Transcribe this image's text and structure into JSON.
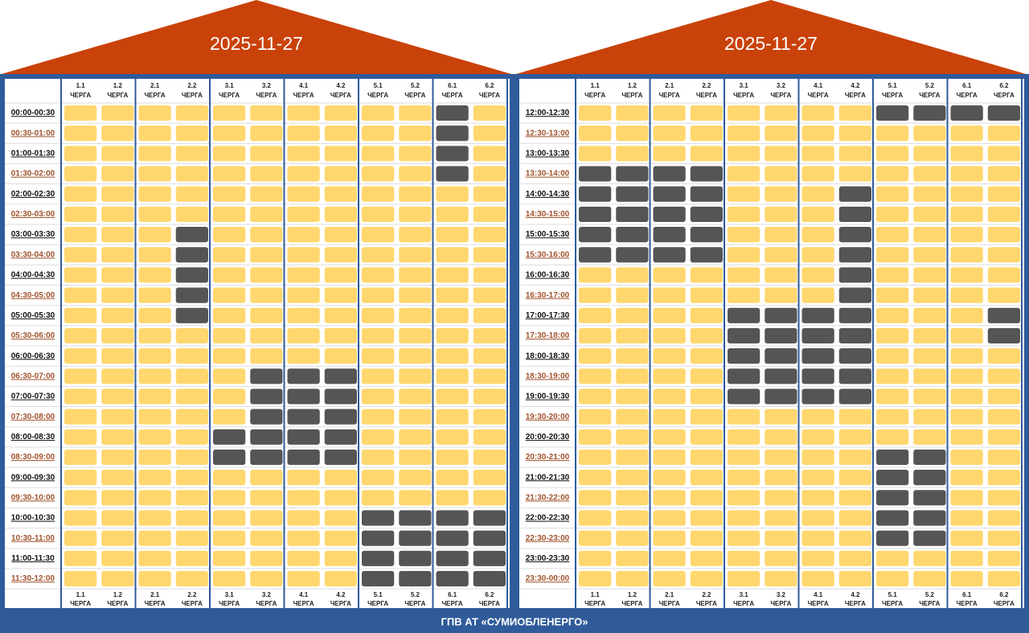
{
  "footer": "ГПВ АТ «СУМИОБЛЕНЕРГО»",
  "groups": [
    {
      "id": "1.1",
      "label": "ЧЕРГА"
    },
    {
      "id": "1.2",
      "label": "ЧЕРГА"
    },
    {
      "id": "2.1",
      "label": "ЧЕРГА"
    },
    {
      "id": "2.2",
      "label": "ЧЕРГА"
    },
    {
      "id": "3.1",
      "label": "ЧЕРГА"
    },
    {
      "id": "3.2",
      "label": "ЧЕРГА"
    },
    {
      "id": "4.1",
      "label": "ЧЕРГА"
    },
    {
      "id": "4.2",
      "label": "ЧЕРГА"
    },
    {
      "id": "5.1",
      "label": "ЧЕРГА"
    },
    {
      "id": "5.2",
      "label": "ЧЕРГА"
    },
    {
      "id": "6.1",
      "label": "ЧЕРГА"
    },
    {
      "id": "6.2",
      "label": "ЧЕРГА"
    }
  ],
  "panels": [
    {
      "date": "2025-11-27",
      "slots": [
        {
          "time": "00:00-00:30",
          "off": [
            0,
            0,
            0,
            0,
            0,
            0,
            0,
            0,
            0,
            0,
            1,
            0
          ]
        },
        {
          "time": "00:30-01:00",
          "off": [
            0,
            0,
            0,
            0,
            0,
            0,
            0,
            0,
            0,
            0,
            1,
            0
          ]
        },
        {
          "time": "01:00-01:30",
          "off": [
            0,
            0,
            0,
            0,
            0,
            0,
            0,
            0,
            0,
            0,
            1,
            0
          ]
        },
        {
          "time": "01:30-02:00",
          "off": [
            0,
            0,
            0,
            0,
            0,
            0,
            0,
            0,
            0,
            0,
            1,
            0
          ]
        },
        {
          "time": "02:00-02:30",
          "off": [
            0,
            0,
            0,
            0,
            0,
            0,
            0,
            0,
            0,
            0,
            0,
            0
          ]
        },
        {
          "time": "02:30-03:00",
          "off": [
            0,
            0,
            0,
            0,
            0,
            0,
            0,
            0,
            0,
            0,
            0,
            0
          ]
        },
        {
          "time": "03:00-03:30",
          "off": [
            0,
            0,
            0,
            1,
            0,
            0,
            0,
            0,
            0,
            0,
            0,
            0
          ]
        },
        {
          "time": "03:30-04:00",
          "off": [
            0,
            0,
            0,
            1,
            0,
            0,
            0,
            0,
            0,
            0,
            0,
            0
          ]
        },
        {
          "time": "04:00-04:30",
          "off": [
            0,
            0,
            0,
            1,
            0,
            0,
            0,
            0,
            0,
            0,
            0,
            0
          ]
        },
        {
          "time": "04:30-05:00",
          "off": [
            0,
            0,
            0,
            1,
            0,
            0,
            0,
            0,
            0,
            0,
            0,
            0
          ]
        },
        {
          "time": "05:00-05:30",
          "off": [
            0,
            0,
            0,
            1,
            0,
            0,
            0,
            0,
            0,
            0,
            0,
            0
          ]
        },
        {
          "time": "05:30-06:00",
          "off": [
            0,
            0,
            0,
            0,
            0,
            0,
            0,
            0,
            0,
            0,
            0,
            0
          ]
        },
        {
          "time": "06:00-06:30",
          "off": [
            0,
            0,
            0,
            0,
            0,
            0,
            0,
            0,
            0,
            0,
            0,
            0
          ]
        },
        {
          "time": "06:30-07:00",
          "off": [
            0,
            0,
            0,
            0,
            0,
            1,
            1,
            1,
            0,
            0,
            0,
            0
          ]
        },
        {
          "time": "07:00-07:30",
          "off": [
            0,
            0,
            0,
            0,
            0,
            1,
            1,
            1,
            0,
            0,
            0,
            0
          ]
        },
        {
          "time": "07:30-08:00",
          "off": [
            0,
            0,
            0,
            0,
            0,
            1,
            1,
            1,
            0,
            0,
            0,
            0
          ]
        },
        {
          "time": "08:00-08:30",
          "off": [
            0,
            0,
            0,
            0,
            1,
            1,
            1,
            1,
            0,
            0,
            0,
            0
          ]
        },
        {
          "time": "08:30-09:00",
          "off": [
            0,
            0,
            0,
            0,
            1,
            1,
            1,
            1,
            0,
            0,
            0,
            0
          ]
        },
        {
          "time": "09:00-09:30",
          "off": [
            0,
            0,
            0,
            0,
            0,
            0,
            0,
            0,
            0,
            0,
            0,
            0
          ]
        },
        {
          "time": "09:30-10:00",
          "off": [
            0,
            0,
            0,
            0,
            0,
            0,
            0,
            0,
            0,
            0,
            0,
            0
          ]
        },
        {
          "time": "10:00-10:30",
          "off": [
            0,
            0,
            0,
            0,
            0,
            0,
            0,
            0,
            1,
            1,
            1,
            1
          ]
        },
        {
          "time": "10:30-11:00",
          "off": [
            0,
            0,
            0,
            0,
            0,
            0,
            0,
            0,
            1,
            1,
            1,
            1
          ]
        },
        {
          "time": "11:00-11:30",
          "off": [
            0,
            0,
            0,
            0,
            0,
            0,
            0,
            0,
            1,
            1,
            1,
            1
          ]
        },
        {
          "time": "11:30-12:00",
          "off": [
            0,
            0,
            0,
            0,
            0,
            0,
            0,
            0,
            1,
            1,
            1,
            1
          ]
        }
      ]
    },
    {
      "date": "2025-11-27",
      "slots": [
        {
          "time": "12:00-12:30",
          "off": [
            0,
            0,
            0,
            0,
            0,
            0,
            0,
            0,
            1,
            1,
            1,
            1
          ]
        },
        {
          "time": "12:30-13:00",
          "off": [
            0,
            0,
            0,
            0,
            0,
            0,
            0,
            0,
            0,
            0,
            0,
            0
          ]
        },
        {
          "time": "13:00-13:30",
          "off": [
            0,
            0,
            0,
            0,
            0,
            0,
            0,
            0,
            0,
            0,
            0,
            0
          ]
        },
        {
          "time": "13:30-14:00",
          "off": [
            1,
            1,
            1,
            1,
            0,
            0,
            0,
            0,
            0,
            0,
            0,
            0
          ]
        },
        {
          "time": "14:00-14:30",
          "off": [
            1,
            1,
            1,
            1,
            0,
            0,
            0,
            1,
            0,
            0,
            0,
            0
          ]
        },
        {
          "time": "14:30-15:00",
          "off": [
            1,
            1,
            1,
            1,
            0,
            0,
            0,
            1,
            0,
            0,
            0,
            0
          ]
        },
        {
          "time": "15:00-15:30",
          "off": [
            1,
            1,
            1,
            1,
            0,
            0,
            0,
            1,
            0,
            0,
            0,
            0
          ]
        },
        {
          "time": "15:30-16:00",
          "off": [
            1,
            1,
            1,
            1,
            0,
            0,
            0,
            1,
            0,
            0,
            0,
            0
          ]
        },
        {
          "time": "16:00-16:30",
          "off": [
            0,
            0,
            0,
            0,
            0,
            0,
            0,
            1,
            0,
            0,
            0,
            0
          ]
        },
        {
          "time": "16:30-17:00",
          "off": [
            0,
            0,
            0,
            0,
            0,
            0,
            0,
            1,
            0,
            0,
            0,
            0
          ]
        },
        {
          "time": "17:00-17:30",
          "off": [
            0,
            0,
            0,
            0,
            1,
            1,
            1,
            1,
            0,
            0,
            0,
            1
          ]
        },
        {
          "time": "17:30-18:00",
          "off": [
            0,
            0,
            0,
            0,
            1,
            1,
            1,
            1,
            0,
            0,
            0,
            1
          ]
        },
        {
          "time": "18:00-18:30",
          "off": [
            0,
            0,
            0,
            0,
            1,
            1,
            1,
            1,
            0,
            0,
            0,
            0
          ]
        },
        {
          "time": "18:30-19:00",
          "off": [
            0,
            0,
            0,
            0,
            1,
            1,
            1,
            1,
            0,
            0,
            0,
            0
          ]
        },
        {
          "time": "19:00-19:30",
          "off": [
            0,
            0,
            0,
            0,
            1,
            1,
            1,
            1,
            0,
            0,
            0,
            0
          ]
        },
        {
          "time": "19:30-20:00",
          "off": [
            0,
            0,
            0,
            0,
            0,
            0,
            0,
            0,
            0,
            0,
            0,
            0
          ]
        },
        {
          "time": "20:00-20:30",
          "off": [
            0,
            0,
            0,
            0,
            0,
            0,
            0,
            0,
            0,
            0,
            0,
            0
          ]
        },
        {
          "time": "20:30-21:00",
          "off": [
            0,
            0,
            0,
            0,
            0,
            0,
            0,
            0,
            1,
            1,
            0,
            0
          ]
        },
        {
          "time": "21:00-21:30",
          "off": [
            0,
            0,
            0,
            0,
            0,
            0,
            0,
            0,
            1,
            1,
            0,
            0
          ]
        },
        {
          "time": "21:30-22:00",
          "off": [
            0,
            0,
            0,
            0,
            0,
            0,
            0,
            0,
            1,
            1,
            0,
            0
          ]
        },
        {
          "time": "22:00-22:30",
          "off": [
            0,
            0,
            0,
            0,
            0,
            0,
            0,
            0,
            1,
            1,
            0,
            0
          ]
        },
        {
          "time": "22:30-23:00",
          "off": [
            0,
            0,
            0,
            0,
            0,
            0,
            0,
            0,
            1,
            1,
            0,
            0
          ]
        },
        {
          "time": "23:00-23:30",
          "off": [
            0,
            0,
            0,
            0,
            0,
            0,
            0,
            0,
            0,
            0,
            0,
            0
          ]
        },
        {
          "time": "23:30-00:00",
          "off": [
            0,
            0,
            0,
            0,
            0,
            0,
            0,
            0,
            0,
            0,
            0,
            0
          ]
        }
      ]
    }
  ]
}
